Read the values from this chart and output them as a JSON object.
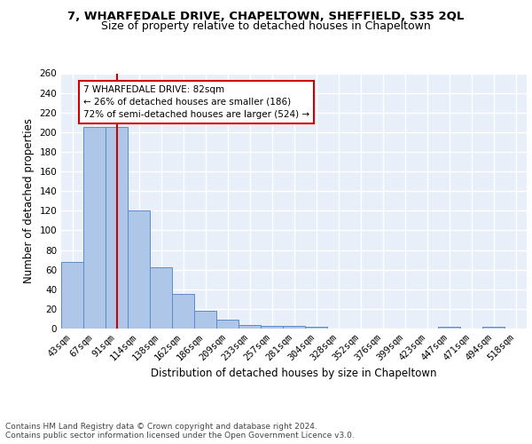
{
  "title": "7, WHARFEDALE DRIVE, CHAPELTOWN, SHEFFIELD, S35 2QL",
  "subtitle": "Size of property relative to detached houses in Chapeltown",
  "xlabel": "Distribution of detached houses by size in Chapeltown",
  "ylabel": "Number of detached properties",
  "bin_labels": [
    "43sqm",
    "67sqm",
    "91sqm",
    "114sqm",
    "138sqm",
    "162sqm",
    "186sqm",
    "209sqm",
    "233sqm",
    "257sqm",
    "281sqm",
    "304sqm",
    "328sqm",
    "352sqm",
    "376sqm",
    "399sqm",
    "423sqm",
    "447sqm",
    "471sqm",
    "494sqm",
    "518sqm"
  ],
  "bar_values": [
    68,
    205,
    205,
    120,
    62,
    35,
    18,
    9,
    4,
    3,
    3,
    2,
    0,
    0,
    0,
    0,
    0,
    2,
    0,
    2,
    0
  ],
  "bar_color": "#aec6e8",
  "bar_edge_color": "#5b8cc8",
  "vline_x": 2,
  "vline_color": "#cc0000",
  "annotation_text": "7 WHARFEDALE DRIVE: 82sqm\n← 26% of detached houses are smaller (186)\n72% of semi-detached houses are larger (524) →",
  "annotation_box_color": "white",
  "annotation_box_edge": "#cc0000",
  "ylim": [
    0,
    260
  ],
  "yticks": [
    0,
    20,
    40,
    60,
    80,
    100,
    120,
    140,
    160,
    180,
    200,
    220,
    240,
    260
  ],
  "bg_color": "#e8eff8",
  "grid_color": "white",
  "footer_text": "Contains HM Land Registry data © Crown copyright and database right 2024.\nContains public sector information licensed under the Open Government Licence v3.0.",
  "title_fontsize": 9.5,
  "subtitle_fontsize": 9,
  "axis_label_fontsize": 8.5,
  "tick_fontsize": 7.5,
  "annotation_fontsize": 7.5,
  "footer_fontsize": 6.5
}
